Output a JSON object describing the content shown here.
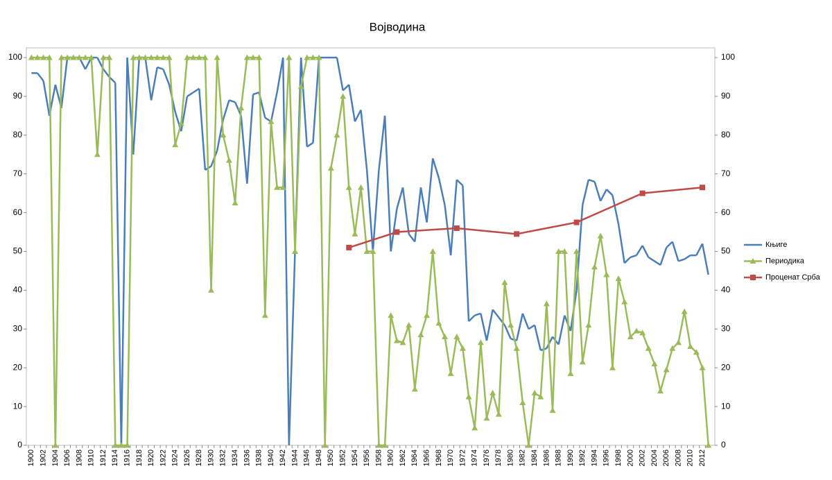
{
  "chart_data": {
    "type": "line",
    "title": "Војводина",
    "categories": [
      "1900",
      null,
      "1902",
      null,
      "1904",
      null,
      "1906",
      null,
      "1908",
      null,
      "1910",
      null,
      "1912",
      null,
      "1914",
      null,
      "1916",
      null,
      "1918",
      null,
      "1920",
      null,
      "1922",
      null,
      "1924",
      null,
      "1926",
      null,
      "1928",
      null,
      "1930",
      null,
      "1932",
      null,
      "1934",
      null,
      "1936",
      null,
      "1938",
      null,
      "1940",
      null,
      "1942",
      null,
      "1944",
      null,
      "1946",
      null,
      "1948",
      null,
      "1950",
      null,
      "1952",
      null,
      "1954",
      null,
      "1956",
      null,
      "1958",
      null,
      "1960",
      null,
      "1962",
      null,
      "1964",
      null,
      "1966",
      null,
      "1968",
      null,
      "1970",
      null,
      "1972",
      null,
      "1974",
      null,
      "1976",
      null,
      "1978",
      null,
      "1980",
      null,
      "1982",
      null,
      "1984",
      null,
      "1986",
      null,
      "1988",
      null,
      "1990",
      null,
      "1992",
      null,
      "1994",
      null,
      "1996",
      null,
      "1998",
      null,
      "2000",
      null,
      "2002",
      null,
      "2004",
      null,
      "2006",
      null,
      "2008",
      null,
      "2010",
      null,
      "2012",
      null
    ],
    "series": [
      {
        "name": "Књиге",
        "color": "#4a7ebb",
        "marker": "none",
        "values": [
          96,
          96,
          94,
          85,
          93,
          87,
          100,
          100,
          100,
          97,
          100,
          100,
          97,
          95,
          93.5,
          0,
          100,
          75,
          100,
          100,
          89,
          97.5,
          97,
          93,
          86,
          81,
          90,
          91,
          92,
          71,
          72,
          76,
          84,
          89,
          88.5,
          85,
          67.5,
          90.5,
          91,
          84.5,
          83.5,
          91,
          100,
          0,
          50,
          100,
          77,
          78,
          100,
          100,
          100,
          100,
          91.5,
          93,
          83.5,
          86.5,
          71,
          50,
          71,
          85,
          50,
          61,
          66.5,
          54.5,
          52.5,
          66.5,
          57.5,
          74,
          69,
          62,
          49,
          68.5,
          67,
          32,
          33.5,
          34,
          27,
          35,
          33,
          31,
          27.5,
          27,
          34,
          30,
          31,
          24.5,
          25,
          28,
          26,
          33.5,
          29.5,
          40,
          62,
          68.5,
          68,
          63,
          66,
          64.5,
          57,
          47,
          48.5,
          49,
          51.5,
          48.5,
          47.5,
          46.5,
          51,
          52.5,
          47.5,
          48,
          49,
          49,
          52,
          44
        ]
      },
      {
        "name": "Периодика",
        "color": "#9bbb59",
        "marker": "triangle",
        "values": [
          100,
          100,
          100,
          100,
          0,
          100,
          100,
          100,
          100,
          100,
          100,
          75,
          100,
          100,
          0,
          0,
          0,
          100,
          100,
          100,
          100,
          100,
          100,
          100,
          77.5,
          83,
          100,
          100,
          100,
          100,
          40,
          100,
          80,
          73.5,
          62.5,
          87,
          100,
          100,
          100,
          33.5,
          83.5,
          66.5,
          66.5,
          100,
          50,
          92.5,
          100,
          100,
          100,
          0,
          71.5,
          80,
          90,
          66.5,
          54.5,
          66.5,
          50,
          50,
          0,
          0,
          33.5,
          27,
          26.5,
          31,
          14.5,
          28.5,
          33.5,
          50,
          31.5,
          28,
          18.5,
          28,
          25,
          12.5,
          4.5,
          26.5,
          7,
          13.5,
          8,
          42,
          31,
          25,
          11,
          0,
          13.5,
          12.5,
          36.5,
          9,
          50,
          50,
          18.5,
          50,
          21.5,
          31,
          46,
          54,
          44,
          20,
          43,
          37,
          28,
          29.5,
          29,
          25,
          21,
          14,
          19.5,
          25,
          26.5,
          34.5,
          25.5,
          24,
          20,
          0
        ]
      },
      {
        "name": "Проценат Срба",
        "color": "#be4b48",
        "marker": "square",
        "values": [
          null,
          null,
          null,
          null,
          null,
          null,
          null,
          null,
          null,
          null,
          null,
          null,
          null,
          null,
          null,
          null,
          null,
          null,
          null,
          null,
          null,
          null,
          null,
          null,
          null,
          null,
          null,
          null,
          null,
          null,
          null,
          null,
          null,
          null,
          null,
          null,
          null,
          null,
          null,
          null,
          null,
          null,
          null,
          null,
          null,
          null,
          null,
          null,
          null,
          null,
          null,
          null,
          null,
          51,
          null,
          null,
          null,
          null,
          null,
          null,
          null,
          55,
          null,
          null,
          null,
          null,
          null,
          null,
          null,
          null,
          null,
          56,
          null,
          null,
          null,
          null,
          null,
          null,
          null,
          null,
          null,
          54.5,
          null,
          null,
          null,
          null,
          null,
          null,
          null,
          null,
          null,
          57.5,
          null,
          null,
          null,
          null,
          null,
          null,
          null,
          null,
          null,
          null,
          65,
          null,
          null,
          null,
          null,
          null,
          null,
          null,
          null,
          null,
          66.5,
          null
        ]
      }
    ],
    "ylim": [
      0,
      100
    ],
    "yticks": [
      0,
      10,
      20,
      30,
      40,
      50,
      60,
      70,
      80,
      90,
      100
    ],
    "y2lim": [
      0,
      100
    ],
    "y2ticks": [
      0,
      10,
      20,
      30,
      40,
      50,
      60,
      70,
      80,
      90,
      100
    ],
    "grid": false,
    "legend": "right"
  }
}
